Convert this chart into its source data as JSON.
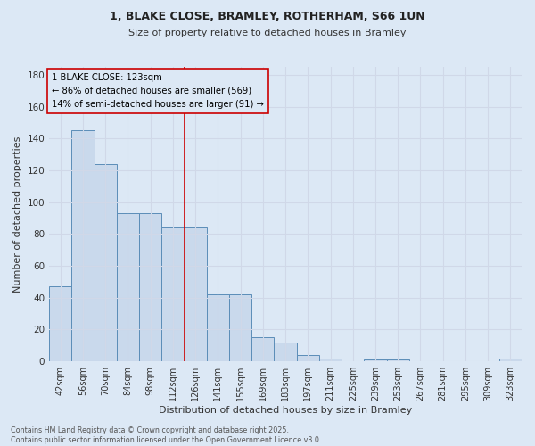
{
  "title_line1": "1, BLAKE CLOSE, BRAMLEY, ROTHERHAM, S66 1UN",
  "title_line2": "Size of property relative to detached houses in Bramley",
  "xlabel": "Distribution of detached houses by size in Bramley",
  "ylabel": "Number of detached properties",
  "footer": "Contains HM Land Registry data © Crown copyright and database right 2025.\nContains public sector information licensed under the Open Government Licence v3.0.",
  "bin_labels": [
    "42sqm",
    "56sqm",
    "70sqm",
    "84sqm",
    "98sqm",
    "112sqm",
    "126sqm",
    "141sqm",
    "155sqm",
    "169sqm",
    "183sqm",
    "197sqm",
    "211sqm",
    "225sqm",
    "239sqm",
    "253sqm",
    "267sqm",
    "281sqm",
    "295sqm",
    "309sqm",
    "323sqm"
  ],
  "bar_values": [
    47,
    145,
    124,
    93,
    93,
    84,
    84,
    42,
    42,
    15,
    12,
    4,
    2,
    0,
    1,
    1,
    0,
    0,
    0,
    0,
    2
  ],
  "bar_color": "#c9d9ec",
  "bar_edge_color": "#5b8db8",
  "annotation_box_text": "1 BLAKE CLOSE: 123sqm\n← 86% of detached houses are smaller (569)\n14% of semi-detached houses are larger (91) →",
  "red_line_color": "#cc0000",
  "annotation_text_color": "#000000",
  "annotation_box_edge_color": "#cc0000",
  "ylim": [
    0,
    185
  ],
  "yticks": [
    0,
    20,
    40,
    60,
    80,
    100,
    120,
    140,
    160,
    180
  ],
  "grid_color": "#d0d8e8",
  "background_color": "#dce8f5"
}
